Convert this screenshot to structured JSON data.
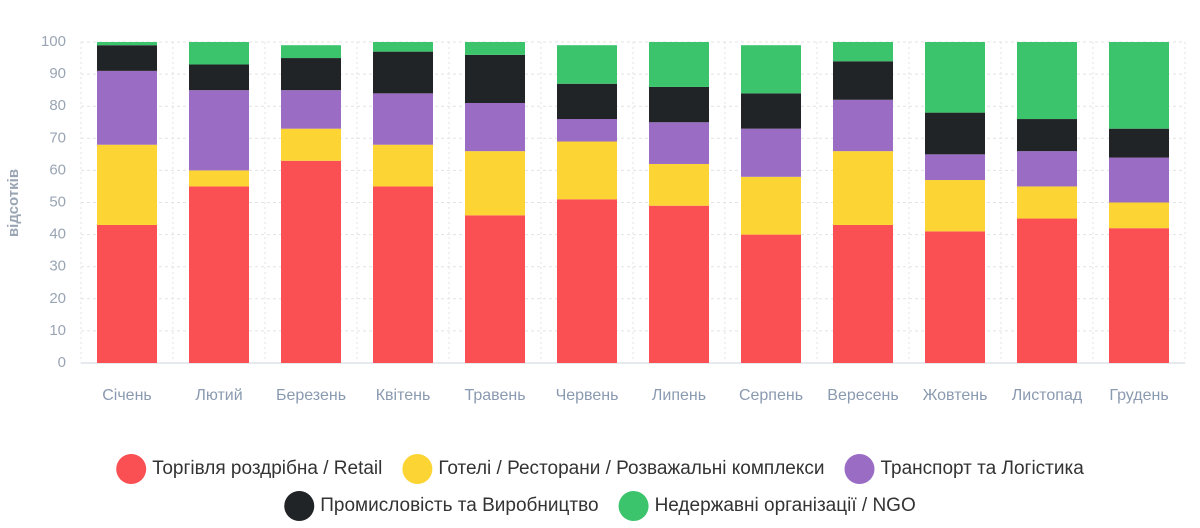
{
  "chart_data": {
    "type": "stacked_bar",
    "y_label": "відсотків",
    "categories": [
      "Січень",
      "Лютий",
      "Березень",
      "Квітень",
      "Травень",
      "Червень",
      "Липень",
      "Серпень",
      "Вересень",
      "Жовтень",
      "Листопад",
      "Грудень"
    ],
    "series": [
      {
        "name": "Торгівля роздрібна / Retail",
        "color": "#fa5053",
        "values": [
          43,
          55,
          63,
          55,
          46,
          51,
          49,
          40,
          43,
          41,
          45,
          42
        ]
      },
      {
        "name": "Готелі / Ресторани / Розважальні комплекси",
        "color": "#fcd535",
        "values": [
          25,
          5,
          10,
          13,
          20,
          18,
          13,
          18,
          23,
          16,
          10,
          8
        ]
      },
      {
        "name": "Транспорт та Логістика",
        "color": "#9a6cc4",
        "values": [
          23,
          25,
          12,
          16,
          15,
          7,
          13,
          15,
          16,
          8,
          11,
          14
        ]
      },
      {
        "name": "Промисловість та Виробництво",
        "color": "#212427",
        "values": [
          8,
          8,
          10,
          13,
          15,
          11,
          11,
          11,
          12,
          13,
          10,
          9
        ]
      },
      {
        "name": "Недержавні організації / NGO",
        "color": "#3cc46c",
        "values": [
          1,
          7,
          4,
          3,
          4,
          12,
          14,
          15,
          6,
          22,
          24,
          27
        ]
      }
    ],
    "ylim": [
      0,
      100
    ],
    "yticks": [
      0,
      10,
      20,
      30,
      40,
      50,
      60,
      70,
      80,
      90,
      100
    ],
    "grid": true
  }
}
